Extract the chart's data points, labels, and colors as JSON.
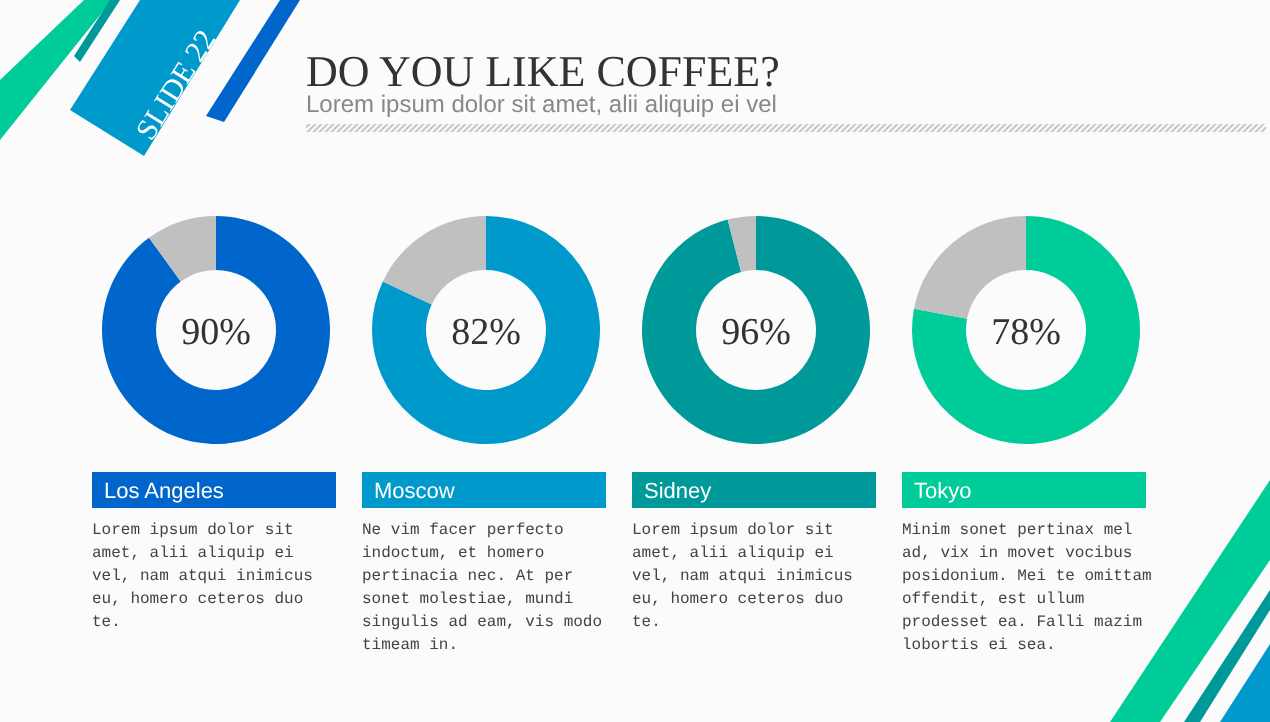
{
  "chart_data": [
    {
      "type": "other",
      "title": "DO YOU LIKE COFFEE?",
      "subtitle": "Lorem ipsum dolor sit amet, alii aliquip ei vel",
      "annotations": [
        "SLIDE 22"
      ]
    },
    {
      "type": "donut",
      "title": "Los Angeles",
      "categories": [
        null,
        null
      ],
      "values": [
        90,
        10
      ],
      "colors": [
        "#0066cc",
        "#c0c0c0"
      ],
      "value_labels": [
        "90%",
        null
      ],
      "annotations": [
        "Lorem ipsum dolor sit",
        "amet, alii aliquip ei",
        "vel, nam atqui inimicus",
        "eu, homero ceteros duo",
        "te."
      ]
    },
    {
      "type": "donut",
      "title": "Moscow",
      "categories": [
        null,
        null
      ],
      "values": [
        82,
        18
      ],
      "colors": [
        "#0099cc",
        "#c0c0c0"
      ],
      "value_labels": [
        "82%",
        null
      ],
      "annotations": [
        "Ne vim facer perfecto",
        "indoctum, et homero",
        "pertinacia nec. At per",
        "sonet molestiae, mundi",
        "singulis ad eam, vis modo",
        "timeam in."
      ]
    },
    {
      "type": "donut",
      "title": "Sidney",
      "categories": [
        null,
        null
      ],
      "values": [
        96,
        4
      ],
      "colors": [
        "#009999",
        "#c0c0c0"
      ],
      "value_labels": [
        "96%",
        null
      ],
      "annotations": [
        "Lorem ipsum dolor sit",
        "amet, alii aliquip ei",
        "vel, nam atqui inimicus",
        "eu, homero ceteros duo",
        "te."
      ]
    },
    {
      "type": "donut",
      "title": "Tokyo",
      "categories": [
        null,
        null
      ],
      "values": [
        78,
        22
      ],
      "colors": [
        "#00cc99",
        "#c0c0c0"
      ],
      "value_labels": [
        "78%",
        null
      ],
      "annotations": [
        "Minim sonet pertinax mel",
        "ad, vix in movet vocibus",
        "posidonium. Mei te omittam",
        "offendit, est ullum",
        "prodesset ea. Falli mazim",
        "lobortis ei sea."
      ]
    }
  ]
}
